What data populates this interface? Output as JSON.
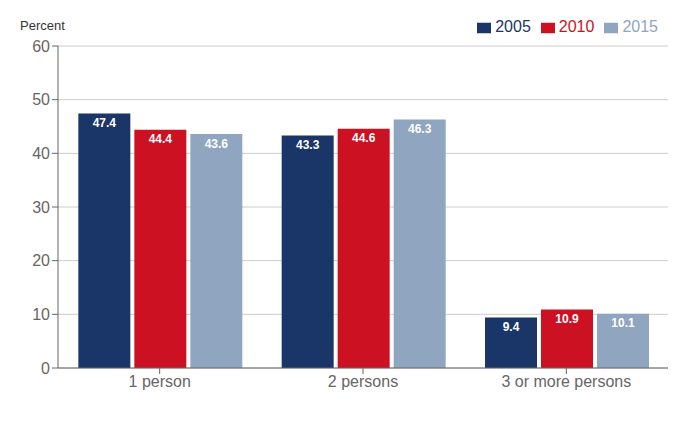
{
  "chart_data": {
    "type": "bar",
    "categories": [
      "1 person",
      "2 persons",
      "3 or more persons"
    ],
    "series": [
      {
        "name": "2005",
        "color": "#1a3567",
        "values": [
          47.4,
          43.3,
          9.4
        ]
      },
      {
        "name": "2010",
        "color": "#cc1122",
        "values": [
          44.4,
          44.6,
          10.9
        ]
      },
      {
        "name": "2015",
        "color": "#8fa5c0",
        "values": [
          43.6,
          46.3,
          10.1
        ]
      }
    ],
    "ylabel": "Percent",
    "ylim": [
      0,
      60
    ],
    "yticks": [
      0,
      10,
      20,
      30,
      40,
      50,
      60
    ],
    "grid": true,
    "legend": "top-right",
    "data_labels": true
  }
}
